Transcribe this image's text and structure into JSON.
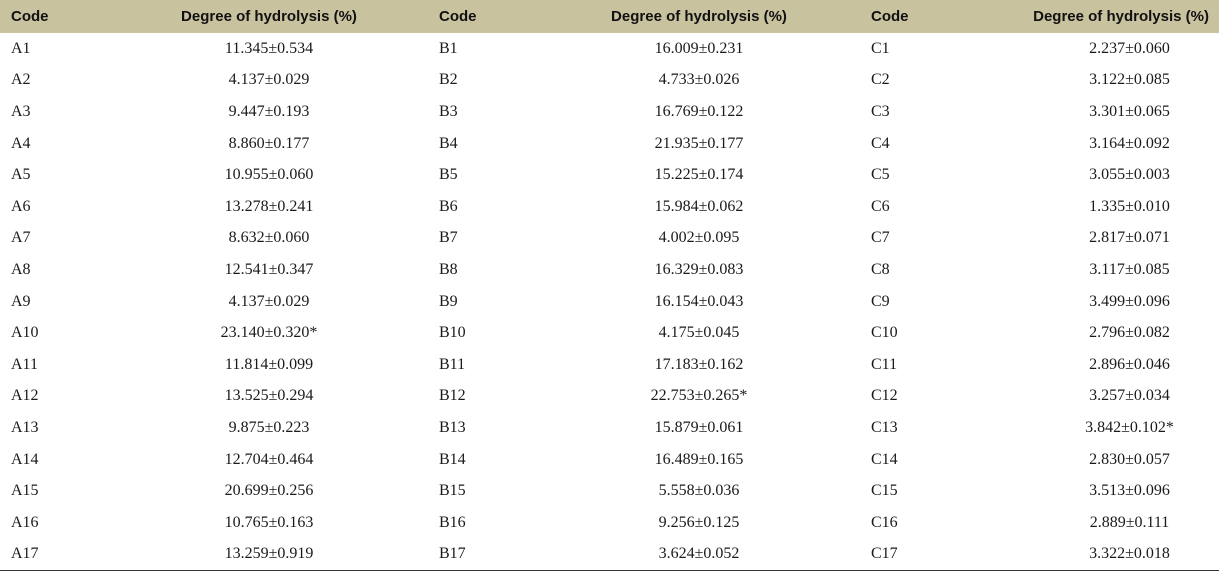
{
  "table": {
    "headers": [
      "Code",
      "Degree of hydrolysis (%)",
      "Code",
      "Degree of hydrolysis (%)",
      "Code",
      "Degree of hydrolysis (%)"
    ],
    "rows": [
      [
        "A1",
        "11.345±0.534",
        "B1",
        "16.009±0.231",
        "C1",
        "2.237±0.060"
      ],
      [
        "A2",
        "4.137±0.029",
        "B2",
        "4.733±0.026",
        "C2",
        "3.122±0.085"
      ],
      [
        "A3",
        "9.447±0.193",
        "B3",
        "16.769±0.122",
        "C3",
        "3.301±0.065"
      ],
      [
        "A4",
        "8.860±0.177",
        "B4",
        "21.935±0.177",
        "C4",
        "3.164±0.092"
      ],
      [
        "A5",
        "10.955±0.060",
        "B5",
        "15.225±0.174",
        "C5",
        "3.055±0.003"
      ],
      [
        "A6",
        "13.278±0.241",
        "B6",
        "15.984±0.062",
        "C6",
        "1.335±0.010"
      ],
      [
        "A7",
        "8.632±0.060",
        "B7",
        "4.002±0.095",
        "C7",
        "2.817±0.071"
      ],
      [
        "A8",
        "12.541±0.347",
        "B8",
        "16.329±0.083",
        "C8",
        "3.117±0.085"
      ],
      [
        "A9",
        "4.137±0.029",
        "B9",
        "16.154±0.043",
        "C9",
        "3.499±0.096"
      ],
      [
        "A10",
        "23.140±0.320*",
        "B10",
        "4.175±0.045",
        "C10",
        "2.796±0.082"
      ],
      [
        "A11",
        "11.814±0.099",
        "B11",
        "17.183±0.162",
        "C11",
        "2.896±0.046"
      ],
      [
        "A12",
        "13.525±0.294",
        "B12",
        "22.753±0.265*",
        "C12",
        "3.257±0.034"
      ],
      [
        "A13",
        "9.875±0.223",
        "B13",
        "15.879±0.061",
        "C13",
        "3.842±0.102*"
      ],
      [
        "A14",
        "12.704±0.464",
        "B14",
        "16.489±0.165",
        "C14",
        "2.830±0.057"
      ],
      [
        "A15",
        "20.699±0.256",
        "B15",
        "5.558±0.036",
        "C15",
        "3.513±0.096"
      ],
      [
        "A16",
        "10.765±0.163",
        "B16",
        "9.256±0.125",
        "C16",
        "2.889±0.111"
      ],
      [
        "A17",
        "13.259±0.919",
        "B17",
        "3.624±0.052",
        "C17",
        "3.322±0.018"
      ]
    ]
  }
}
